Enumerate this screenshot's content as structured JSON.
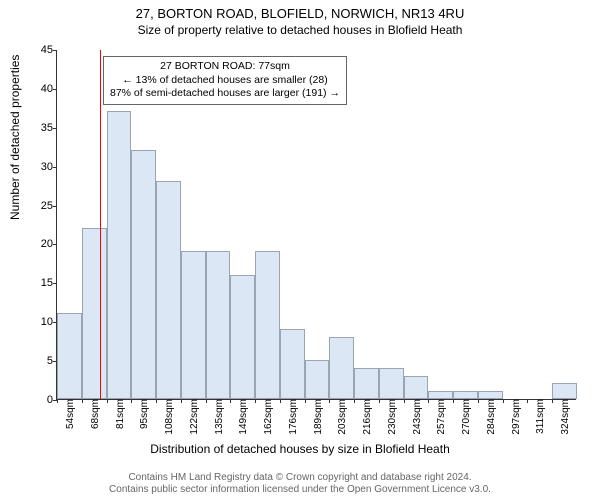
{
  "title": "27, BORTON ROAD, BLOFIELD, NORWICH, NR13 4RU",
  "subtitle": "Size of property relative to detached houses in Blofield Heath",
  "ylabel": "Number of detached properties",
  "xlabel": "Distribution of detached houses by size in Blofield Heath",
  "chart": {
    "type": "histogram",
    "ylim": [
      0,
      45
    ],
    "ytick_step": 5,
    "yticks": [
      0,
      5,
      10,
      15,
      20,
      25,
      30,
      35,
      40,
      45
    ],
    "xticks": [
      "54sqm",
      "68sqm",
      "81sqm",
      "95sqm",
      "108sqm",
      "122sqm",
      "135sqm",
      "149sqm",
      "162sqm",
      "176sqm",
      "189sqm",
      "203sqm",
      "216sqm",
      "230sqm",
      "243sqm",
      "257sqm",
      "270sqm",
      "284sqm",
      "297sqm",
      "311sqm",
      "324sqm"
    ],
    "bar_values": [
      11,
      22,
      37,
      32,
      28,
      19,
      19,
      16,
      19,
      9,
      5,
      8,
      4,
      4,
      3,
      1,
      1,
      1,
      0,
      0,
      2
    ],
    "bar_fill": "#dbe7f5",
    "bar_border": "#9aa5b3",
    "background": "#ffffff",
    "reference_line_x_index": 1.72,
    "reference_line_color": "#ff0000",
    "axis_color": "#333333"
  },
  "annotation": {
    "line1": "27 BORTON ROAD: 77sqm",
    "line2": "← 13% of detached houses are smaller (28)",
    "line3": "87% of semi-detached houses are larger (191) →"
  },
  "footer": {
    "line1": "Contains HM Land Registry data © Crown copyright and database right 2024.",
    "line2": "Contains public sector information licensed under the Open Government Licence v3.0."
  },
  "fonts": {
    "title_size": 13,
    "subtitle_size": 12,
    "label_size": 12,
    "tick_size": 11,
    "annotation_size": 10.5,
    "footer_size": 10
  }
}
